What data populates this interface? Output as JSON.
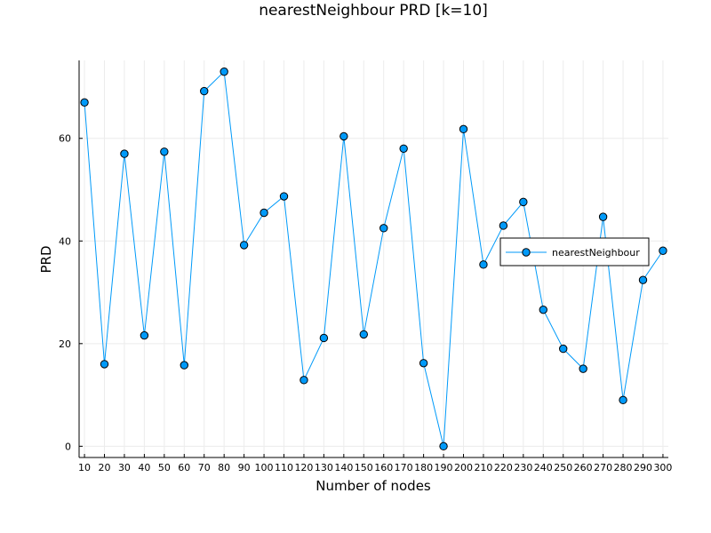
{
  "chart_data": {
    "type": "line",
    "title": "nearestNeighbour PRD [k=10]",
    "xlabel": "Number of nodes",
    "ylabel": "PRD",
    "x": [
      10,
      20,
      30,
      40,
      50,
      60,
      70,
      80,
      90,
      100,
      110,
      120,
      130,
      140,
      150,
      160,
      170,
      180,
      190,
      200,
      210,
      220,
      230,
      240,
      250,
      260,
      270,
      280,
      290,
      300
    ],
    "series": [
      {
        "name": "nearestNeighbour",
        "color": "#009AF9",
        "values": [
          67,
          16,
          57,
          21.6,
          57.4,
          15.8,
          69.2,
          73,
          39.2,
          45.5,
          48.7,
          12.9,
          21.1,
          60.4,
          21.8,
          42.5,
          58,
          16.2,
          0,
          61.8,
          35.4,
          43,
          47.6,
          26.6,
          19,
          15.1,
          44.7,
          9,
          32.4,
          38.1
        ]
      }
    ],
    "x_ticks": [
      "10",
      "20",
      "30",
      "40",
      "50",
      "60",
      "70",
      "80",
      "90",
      "100",
      "110",
      "120",
      "130",
      "140",
      "150",
      "160",
      "170",
      "180",
      "190",
      "200",
      "210",
      "220",
      "230",
      "240",
      "250",
      "260",
      "270",
      "280",
      "290",
      "300"
    ],
    "y_ticks": [
      0,
      20,
      40,
      60
    ],
    "xlim": [
      7.3,
      302.7
    ],
    "ylim": [
      -2.19,
      75.19
    ],
    "grid": true,
    "legend_position": "right"
  }
}
